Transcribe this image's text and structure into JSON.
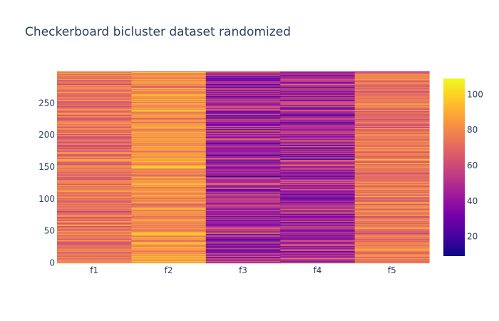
{
  "chart_data": {
    "type": "heatmap",
    "title": "Checkerboard bicluster dataset randomized",
    "columns": [
      "f1",
      "f2",
      "f3",
      "f4",
      "f5"
    ],
    "y_range": [
      0,
      299
    ],
    "y_ticks": [
      0,
      50,
      100,
      150,
      200,
      250
    ],
    "colorbar": {
      "range": [
        9,
        109
      ],
      "ticks": [
        20,
        40,
        60,
        80,
        100
      ]
    },
    "colorscale": [
      "#0d0887",
      "#46039f",
      "#7201a8",
      "#9c179e",
      "#bd3786",
      "#d8576b",
      "#ed7953",
      "#fb9f3a",
      "#fdca26",
      "#f0f921"
    ],
    "column_value_profiles": {
      "f1": {
        "typical_range": [
          50,
          95
        ],
        "mean": 70
      },
      "f2": {
        "typical_range": [
          60,
          105
        ],
        "mean": 85
      },
      "f3": {
        "typical_range": [
          10,
          80
        ],
        "mean": 55
      },
      "f4": {
        "typical_range": [
          10,
          80
        ],
        "mean": 60
      },
      "f5": {
        "typical_range": [
          50,
          95
        ],
        "mean": 70
      }
    }
  }
}
